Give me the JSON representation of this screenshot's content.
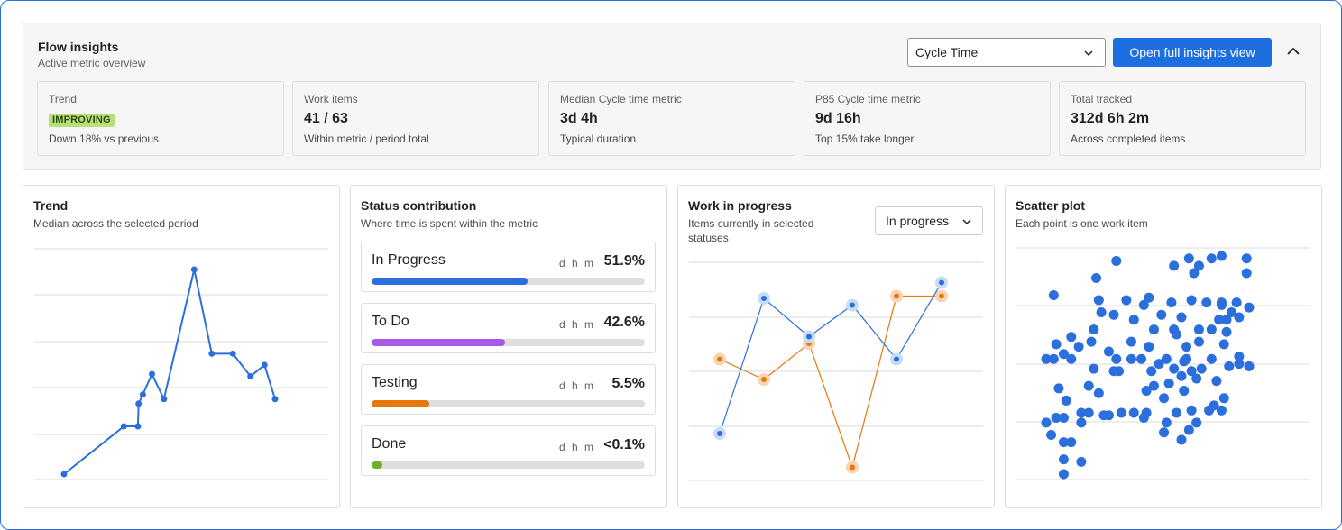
{
  "header": {
    "title": "Flow insights",
    "subtitle": "Active metric overview",
    "metric_select_value": "Cycle Time",
    "open_button_label": "Open full insights view"
  },
  "cards": [
    {
      "label": "Trend",
      "badge": "IMPROVING",
      "caption": "Down 18% vs previous"
    },
    {
      "label": "Work items",
      "value": "41 / 63",
      "caption": "Within metric / period total"
    },
    {
      "label": "Median Cycle time metric",
      "value": "3d 4h",
      "caption": "Typical duration"
    },
    {
      "label": "P85 Cycle time metric",
      "value": "9d 16h",
      "caption": "Top 15% take longer"
    },
    {
      "label": "Total tracked",
      "value": "312d 6h 2m",
      "caption": "Across completed items"
    }
  ],
  "trend_panel": {
    "title": "Trend",
    "subtitle": "Median across the selected period"
  },
  "status_panel": {
    "title": "Status contribution",
    "subtitle": "Where time is spent within the metric",
    "unit_label": "d h m",
    "rows": [
      {
        "name": "In Progress",
        "pct_label": "51.9%",
        "fraction": 0.57,
        "color": "#2a6fdb"
      },
      {
        "name": "To Do",
        "pct_label": "42.6%",
        "fraction": 0.49,
        "color": "#a85ae6"
      },
      {
        "name": "Testing",
        "pct_label": "5.5%",
        "fraction": 0.21,
        "color": "#e6780c"
      },
      {
        "name": "Done",
        "pct_label": "<0.1%",
        "fraction": 0.04,
        "color": "#6fb02c"
      }
    ]
  },
  "wip_panel": {
    "title": "Work in progress",
    "subtitle_line1": "Items currently in selected",
    "subtitle_line2": "statuses",
    "select_value": "In progress"
  },
  "scatter_panel": {
    "title": "Scatter plot",
    "subtitle": "Each point is one work item"
  },
  "colors": {
    "accent": "#1d6fe0",
    "series_blue": "#2a6fdb",
    "series_orange": "#e6780c",
    "improving_badge": "#b8e07a"
  },
  "chart_data": [
    {
      "type": "line",
      "series": [
        {
          "values": [
            0.0,
            0.21,
            0.21,
            0.31,
            0.35,
            0.44,
            0.33,
            0.9,
            0.53,
            0.53,
            0.43,
            0.48,
            0.33
          ]
        }
      ],
      "x": [
        0,
        8.5,
        10.5,
        10.6,
        11.2,
        12.5,
        14.2,
        18.5,
        21,
        24,
        26.5,
        28.5,
        30
      ],
      "grid": true,
      "ylim": [
        0,
        1
      ],
      "xlim": [
        0,
        30
      ]
    },
    {
      "type": "line",
      "series": [
        {
          "values": [
            0.18,
            0.78,
            0.61,
            0.75,
            0.51,
            0.85
          ]
        },
        {
          "values": [
            0.51,
            0.42,
            0.58,
            0.03,
            0.79,
            0.79
          ]
        }
      ],
      "x": [
        1,
        2,
        3,
        4,
        5,
        6
      ],
      "grid": true,
      "ylim": [
        0,
        1
      ]
    },
    {
      "type": "scatter",
      "grid": true,
      "ylim": [
        0,
        1
      ],
      "xlim": [
        0,
        1
      ],
      "points": [
        [
          0.85,
          0.97
        ],
        [
          0.72,
          0.96
        ],
        [
          0.81,
          0.96
        ],
        [
          0.95,
          0.96
        ],
        [
          0.66,
          0.93
        ],
        [
          0.76,
          0.93
        ],
        [
          0.95,
          0.9
        ],
        [
          0.74,
          0.9
        ],
        [
          0.35,
          0.88
        ],
        [
          0.18,
          0.81
        ],
        [
          0.36,
          0.79
        ],
        [
          0.47,
          0.79
        ],
        [
          0.56,
          0.8
        ],
        [
          0.65,
          0.78
        ],
        [
          0.73,
          0.79
        ],
        [
          0.79,
          0.78
        ],
        [
          0.85,
          0.78
        ],
        [
          0.91,
          0.78
        ],
        [
          0.54,
          0.77
        ],
        [
          0.85,
          0.77
        ],
        [
          0.37,
          0.74
        ],
        [
          0.42,
          0.73
        ],
        [
          0.5,
          0.71
        ],
        [
          0.61,
          0.73
        ],
        [
          0.69,
          0.72
        ],
        [
          0.89,
          0.74
        ],
        [
          0.84,
          0.71
        ],
        [
          0.92,
          0.72
        ],
        [
          0.87,
          0.71
        ],
        [
          0.96,
          0.76
        ],
        [
          0.34,
          0.67
        ],
        [
          0.58,
          0.67
        ],
        [
          0.66,
          0.67
        ],
        [
          0.76,
          0.67
        ],
        [
          0.81,
          0.67
        ],
        [
          0.87,
          0.66
        ],
        [
          0.67,
          0.65
        ],
        [
          0.25,
          0.64
        ],
        [
          0.28,
          0.6
        ],
        [
          0.33,
          0.62
        ],
        [
          0.49,
          0.62
        ],
        [
          0.56,
          0.6
        ],
        [
          0.71,
          0.6
        ],
        [
          0.76,
          0.62
        ],
        [
          0.86,
          0.61
        ],
        [
          0.19,
          0.61
        ],
        [
          0.22,
          0.57
        ],
        [
          0.15,
          0.55
        ],
        [
          0.18,
          0.55
        ],
        [
          0.25,
          0.55
        ],
        [
          0.4,
          0.58
        ],
        [
          0.43,
          0.55
        ],
        [
          0.49,
          0.55
        ],
        [
          0.53,
          0.55
        ],
        [
          0.63,
          0.55
        ],
        [
          0.71,
          0.55
        ],
        [
          0.81,
          0.55
        ],
        [
          0.92,
          0.56
        ],
        [
          0.92,
          0.53
        ],
        [
          0.77,
          0.51
        ],
        [
          0.7,
          0.54
        ],
        [
          0.57,
          0.5
        ],
        [
          0.34,
          0.51
        ],
        [
          0.42,
          0.5
        ],
        [
          0.44,
          0.5
        ],
        [
          0.6,
          0.53
        ],
        [
          0.66,
          0.51
        ],
        [
          0.73,
          0.5
        ],
        [
          0.88,
          0.52
        ],
        [
          0.96,
          0.52
        ],
        [
          0.69,
          0.48
        ],
        [
          0.75,
          0.47
        ],
        [
          0.64,
          0.45
        ],
        [
          0.83,
          0.46
        ],
        [
          0.2,
          0.43
        ],
        [
          0.32,
          0.44
        ],
        [
          0.36,
          0.41
        ],
        [
          0.55,
          0.42
        ],
        [
          0.58,
          0.44
        ],
        [
          0.7,
          0.42
        ],
        [
          0.62,
          0.39
        ],
        [
          0.23,
          0.38
        ],
        [
          0.82,
          0.36
        ],
        [
          0.86,
          0.39
        ],
        [
          0.85,
          0.34
        ],
        [
          0.29,
          0.33
        ],
        [
          0.32,
          0.33
        ],
        [
          0.38,
          0.32
        ],
        [
          0.4,
          0.32
        ],
        [
          0.45,
          0.33
        ],
        [
          0.5,
          0.33
        ],
        [
          0.55,
          0.33
        ],
        [
          0.67,
          0.33
        ],
        [
          0.73,
          0.34
        ],
        [
          0.8,
          0.34
        ],
        [
          0.19,
          0.31
        ],
        [
          0.22,
          0.31
        ],
        [
          0.29,
          0.29
        ],
        [
          0.54,
          0.31
        ],
        [
          0.63,
          0.29
        ],
        [
          0.75,
          0.29
        ],
        [
          0.15,
          0.29
        ],
        [
          0.17,
          0.24
        ],
        [
          0.25,
          0.21
        ],
        [
          0.22,
          0.21
        ],
        [
          0.62,
          0.25
        ],
        [
          0.69,
          0.22
        ],
        [
          0.72,
          0.26
        ],
        [
          0.22,
          0.14
        ],
        [
          0.29,
          0.13
        ],
        [
          0.22,
          0.08
        ],
        [
          0.43,
          0.95
        ]
      ]
    }
  ]
}
